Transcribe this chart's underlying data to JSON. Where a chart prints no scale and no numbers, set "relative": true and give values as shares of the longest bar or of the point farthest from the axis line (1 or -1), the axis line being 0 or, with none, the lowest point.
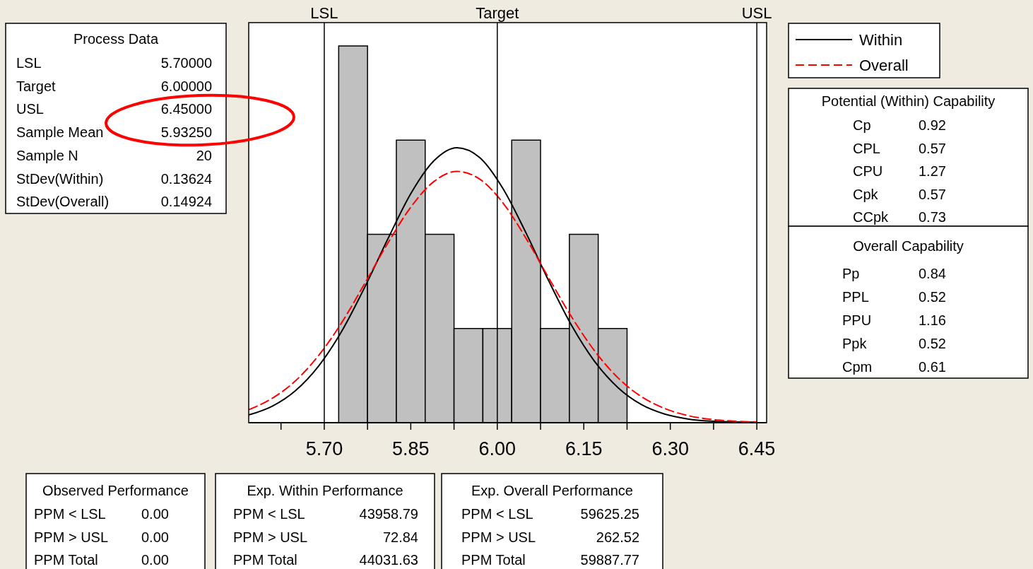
{
  "chart_data": [
    {
      "type": "histogram",
      "relative": true,
      "bins": [
        5.725,
        5.775,
        5.825,
        5.875,
        5.925,
        5.975,
        6.025,
        6.075,
        6.125,
        6.175,
        6.225
      ],
      "values": [
        1,
        0.5,
        0.75,
        0.5,
        0.25,
        0.25,
        0.75,
        0.25,
        0.5,
        0.25
      ],
      "color": "#c0c0c0",
      "xlim": [
        5.569,
        6.467
      ],
      "xticks": [
        {
          "value": 5.625,
          "label": null
        },
        {
          "value": 5.7,
          "label": "5.70"
        },
        {
          "value": 5.775,
          "label": null
        },
        {
          "value": 5.85,
          "label": "5.85"
        },
        {
          "value": 5.925,
          "label": null
        },
        {
          "value": 6.0,
          "label": "6.00"
        },
        {
          "value": 6.075,
          "label": null
        },
        {
          "value": 6.15,
          "label": "6.15"
        },
        {
          "value": 6.225,
          "label": null
        },
        {
          "value": 6.3,
          "label": "6.30"
        },
        {
          "value": 6.375,
          "label": null
        },
        {
          "value": 6.45,
          "label": "6.45"
        }
      ],
      "legend": "top right",
      "ref_lines": [
        {
          "axis": "x",
          "value": 5.7,
          "label": "LSL",
          "color": "#000000"
        },
        {
          "axis": "x",
          "value": 6.0,
          "label": "Target",
          "color": "#000000"
        },
        {
          "axis": "x",
          "value": 6.45,
          "label": "USL",
          "color": "#000000"
        }
      ],
      "series": [
        {
          "name": "Within",
          "type": "line",
          "color": "#000000",
          "line_style": "solid",
          "x": [
            5.57,
            5.61,
            5.65,
            5.69,
            5.73,
            5.77,
            5.81,
            5.85,
            5.89,
            5.93,
            5.97,
            6.01,
            6.05,
            6.09,
            6.13,
            6.17,
            6.21,
            6.25,
            6.29,
            6.33,
            6.37,
            6.41,
            6.45
          ],
          "values": [
            0.021,
            0.044,
            0.085,
            0.15,
            0.242,
            0.359,
            0.487,
            0.608,
            0.695,
            0.73,
            0.703,
            0.621,
            0.503,
            0.374,
            0.255,
            0.16,
            0.092,
            0.048,
            0.023,
            0.01,
            0.004,
            0.002,
            0.001
          ]
        },
        {
          "name": "Overall",
          "type": "line",
          "color": "#ff0000",
          "line_style": "dashed",
          "x": [
            5.57,
            5.61,
            5.65,
            5.69,
            5.73,
            5.77,
            5.81,
            5.85,
            5.89,
            5.93,
            5.97,
            6.01,
            6.05,
            6.09,
            6.13,
            6.17,
            6.21,
            6.25,
            6.29,
            6.33,
            6.37,
            6.41,
            6.45
          ],
          "values": [
            0.035,
            0.065,
            0.111,
            0.178,
            0.265,
            0.369,
            0.476,
            0.572,
            0.64,
            0.667,
            0.646,
            0.583,
            0.489,
            0.382,
            0.278,
            0.188,
            0.118,
            0.069,
            0.038,
            0.019,
            0.009,
            0.004,
            0.002
          ]
        }
      ]
    },
    {
      "type": "other",
      "title": "Process Data",
      "categories": [
        "LSL",
        "Target",
        "USL",
        "Sample Mean",
        "Sample N",
        "StDev(Within)",
        "StDev(Overall)"
      ],
      "value_labels": [
        "5.70000",
        "6.00000",
        "6.45000",
        "5.93250",
        "20",
        "0.13624",
        "0.14924"
      ]
    },
    {
      "type": "other",
      "title": "Potential (Within) Capability",
      "categories": [
        "Cp",
        "CPL",
        "CPU",
        "Cpk",
        "CCpk"
      ],
      "value_labels": [
        "0.92",
        "0.57",
        "1.27",
        "0.57",
        "0.73"
      ]
    },
    {
      "type": "other",
      "title": "Overall Capability",
      "categories": [
        "Pp",
        "PPL",
        "PPU",
        "Ppk",
        "Cpm"
      ],
      "value_labels": [
        "0.84",
        "0.52",
        "1.16",
        "0.52",
        "0.61"
      ]
    },
    {
      "type": "other",
      "title": "Observed Performance",
      "categories": [
        "PPM < LSL",
        "PPM > USL",
        "PPM Total"
      ],
      "value_labels": [
        "0.00",
        "0.00",
        "0.00"
      ]
    },
    {
      "type": "other",
      "title": "Exp. Within Performance",
      "categories": [
        "PPM < LSL",
        "PPM > USL",
        "PPM Total"
      ],
      "value_labels": [
        "43958.79",
        "72.84",
        "44031.63"
      ]
    },
    {
      "type": "other",
      "title": "Exp. Overall Performance",
      "categories": [
        "PPM < LSL",
        "PPM > USL",
        "PPM Total"
      ],
      "value_labels": [
        "59625.25",
        "262.52",
        "59887.77"
      ]
    }
  ]
}
